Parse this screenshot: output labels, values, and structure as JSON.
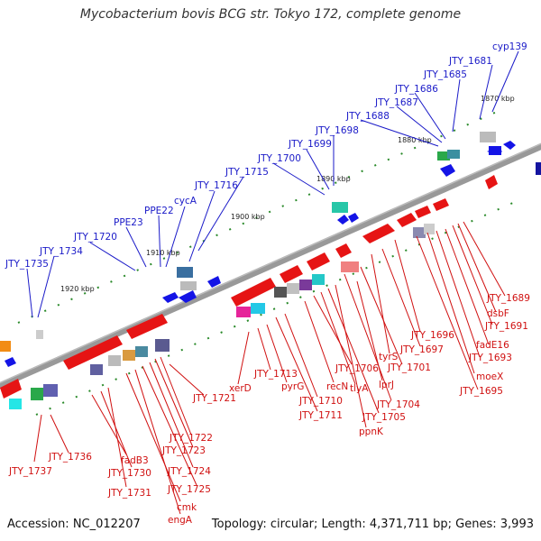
{
  "title": "Mycobacterium bovis BCG str. Tokyo 172, complete genome",
  "footer": {
    "accession": "Accession: NC_012207",
    "topology": "Topology: circular; Length: 4,371,711 bp; Genes: 3,993"
  },
  "kbp_ticks": [
    "1870 kbp",
    "1880 kbp",
    "1890 kbp",
    "1900 kbp",
    "1910 kbp",
    "1920 kbp"
  ],
  "upper_labels": [
    "JTY_1735",
    "JTY_1734",
    "JTY_1720",
    "PPE23",
    "PPE22",
    "cycA",
    "JTY_1716",
    "JTY_1715",
    "JTY_1700",
    "JTY_1699",
    "JTY_1698",
    "JTY_1688",
    "JTY_1687",
    "JTY_1686",
    "JTY_1685",
    "JTY_1681",
    "cyp139"
  ],
  "lower_labels": [
    "JTY_1737",
    "JTY_1736",
    "fadB3",
    "JTY_1730",
    "JTY_1731",
    "cmk",
    "engA",
    "JTY_1725",
    "JTY_1724",
    "JTY_1723",
    "JTY_1722",
    "JTY_1721",
    "xerD",
    "JTY_1713",
    "pyrG",
    "JTY_1711",
    "JTY_1710",
    "recN",
    "JTY_1706",
    "tlyA",
    "JTY_1705",
    "ppnK",
    "JTY_1704",
    "lprJ",
    "JTY_1701",
    "tyrS",
    "JTY_1697",
    "JTY_1696",
    "JTY_1695",
    "moeX",
    "JTY_1693",
    "fadE16",
    "JTY_1691",
    "dsbF",
    "JTY_1689"
  ],
  "colors": {
    "forward_gene": "#1414e6",
    "reverse_gene": "#e61414",
    "backbone": "#888888",
    "tick": "#2a8a2a"
  }
}
